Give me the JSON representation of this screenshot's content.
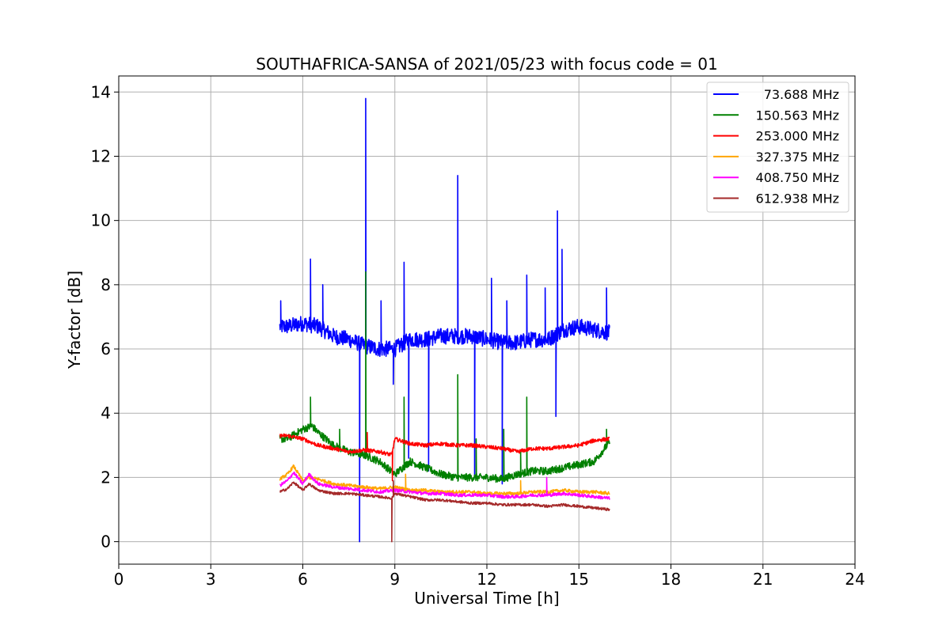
{
  "chart_data": {
    "type": "line",
    "title": "SOUTHAFRICA-SANSA of 2021/05/23 with focus code = 01",
    "xlabel": "Universal Time [h]",
    "ylabel": "Y-factor [dB]",
    "xlim": [
      0,
      24
    ],
    "ylim": [
      -0.7,
      14.5
    ],
    "xticks": [
      0,
      3,
      6,
      9,
      12,
      15,
      18,
      21,
      24
    ],
    "yticks": [
      0,
      2,
      4,
      6,
      8,
      10,
      12,
      14
    ],
    "grid": true,
    "legend_position": "top-right",
    "series": [
      {
        "name": "73.688 MHz",
        "color": "#0000ff",
        "noise": 0.25,
        "x": [
          5.25,
          5.5,
          6.0,
          6.5,
          7.0,
          7.5,
          8.0,
          8.5,
          9.0,
          9.5,
          10.0,
          10.5,
          11.0,
          11.5,
          12.0,
          12.5,
          13.0,
          13.5,
          14.0,
          14.5,
          15.0,
          15.5,
          16.0
        ],
        "y": [
          6.7,
          6.7,
          6.8,
          6.7,
          6.4,
          6.3,
          6.1,
          6.0,
          6.0,
          6.3,
          6.3,
          6.4,
          6.4,
          6.4,
          6.3,
          6.2,
          6.2,
          6.3,
          6.3,
          6.6,
          6.7,
          6.6,
          6.5
        ],
        "spikes": [
          [
            5.28,
            7.5
          ],
          [
            6.25,
            8.8
          ],
          [
            6.65,
            8.0
          ],
          [
            7.85,
            0.0
          ],
          [
            8.05,
            13.8
          ],
          [
            8.55,
            7.5
          ],
          [
            8.95,
            4.9
          ],
          [
            9.3,
            8.7
          ],
          [
            9.45,
            2.6
          ],
          [
            10.1,
            2.2
          ],
          [
            11.05,
            11.4
          ],
          [
            11.6,
            2.0
          ],
          [
            12.15,
            8.2
          ],
          [
            12.5,
            1.8
          ],
          [
            12.65,
            7.5
          ],
          [
            13.3,
            8.3
          ],
          [
            13.9,
            7.9
          ],
          [
            14.3,
            10.3
          ],
          [
            14.45,
            9.1
          ],
          [
            14.25,
            3.9
          ],
          [
            15.9,
            7.9
          ]
        ]
      },
      {
        "name": "150.563 MHz",
        "color": "#008000",
        "noise": 0.12,
        "x": [
          5.25,
          5.5,
          6.0,
          6.3,
          6.5,
          7.0,
          7.5,
          8.0,
          8.5,
          9.0,
          9.5,
          10.0,
          10.5,
          11.0,
          11.5,
          12.0,
          12.5,
          13.0,
          13.5,
          14.0,
          14.5,
          15.0,
          15.5,
          16.0
        ],
        "y": [
          3.2,
          3.2,
          3.5,
          3.6,
          3.4,
          3.0,
          2.8,
          2.7,
          2.5,
          2.1,
          2.5,
          2.3,
          2.1,
          2.0,
          2.0,
          2.0,
          1.95,
          2.1,
          2.2,
          2.2,
          2.3,
          2.4,
          2.5,
          3.1
        ],
        "spikes": [
          [
            6.25,
            4.5
          ],
          [
            7.2,
            3.5
          ],
          [
            8.05,
            8.4
          ],
          [
            9.3,
            4.5
          ],
          [
            11.05,
            5.2
          ],
          [
            11.65,
            3.2
          ],
          [
            12.55,
            3.5
          ],
          [
            13.3,
            4.5
          ],
          [
            13.1,
            2.8
          ],
          [
            15.9,
            3.5
          ]
        ]
      },
      {
        "name": "253.000 MHz",
        "color": "#ff0000",
        "noise": 0.06,
        "x": [
          5.25,
          5.5,
          6.0,
          6.5,
          7.0,
          7.5,
          8.0,
          8.5,
          8.9,
          9.0,
          9.5,
          10.0,
          10.5,
          11.0,
          11.5,
          12.0,
          12.5,
          13.0,
          13.5,
          14.0,
          14.5,
          15.0,
          15.5,
          16.0
        ],
        "y": [
          3.3,
          3.3,
          3.2,
          3.0,
          2.9,
          2.8,
          2.85,
          2.8,
          2.7,
          3.2,
          3.05,
          3.0,
          3.05,
          3.0,
          3.0,
          2.95,
          2.9,
          2.8,
          2.9,
          2.9,
          2.95,
          3.0,
          3.15,
          3.2
        ],
        "spikes": [
          [
            8.1,
            3.4
          ],
          [
            8.92,
            1.9
          ]
        ]
      },
      {
        "name": "327.375 MHz",
        "color": "#ffa500",
        "noise": 0.05,
        "x": [
          5.25,
          5.5,
          5.7,
          6.0,
          6.2,
          6.5,
          7.0,
          7.5,
          8.0,
          8.5,
          9.0,
          9.5,
          10.0,
          10.5,
          11.0,
          11.5,
          12.0,
          12.5,
          13.0,
          13.5,
          14.0,
          14.5,
          15.0,
          15.5,
          16.0
        ],
        "y": [
          1.95,
          2.1,
          2.35,
          1.9,
          2.0,
          1.95,
          1.8,
          1.75,
          1.7,
          1.65,
          1.7,
          1.6,
          1.6,
          1.55,
          1.55,
          1.55,
          1.5,
          1.5,
          1.5,
          1.55,
          1.55,
          1.6,
          1.55,
          1.55,
          1.5
        ],
        "spikes": [
          [
            9.35,
            2.1
          ],
          [
            13.1,
            1.9
          ]
        ]
      },
      {
        "name": "408.750 MHz",
        "color": "#ff00ff",
        "noise": 0.05,
        "x": [
          5.25,
          5.5,
          5.7,
          6.0,
          6.2,
          6.5,
          7.0,
          7.5,
          8.0,
          8.5,
          9.0,
          9.5,
          10.0,
          10.5,
          11.0,
          11.5,
          12.0,
          12.5,
          13.0,
          13.5,
          14.0,
          14.5,
          15.0,
          15.5,
          16.0
        ],
        "y": [
          1.75,
          1.9,
          2.15,
          1.8,
          2.1,
          1.8,
          1.7,
          1.65,
          1.6,
          1.55,
          1.6,
          1.55,
          1.5,
          1.5,
          1.45,
          1.45,
          1.45,
          1.4,
          1.4,
          1.45,
          1.45,
          1.5,
          1.45,
          1.4,
          1.35
        ],
        "spikes": [
          [
            13.95,
            2.0
          ]
        ]
      },
      {
        "name": "612.938 MHz",
        "color": "#a52a2a",
        "noise": 0.04,
        "x": [
          5.25,
          5.5,
          5.7,
          6.0,
          6.2,
          6.5,
          7.0,
          7.5,
          8.0,
          8.5,
          8.9,
          9.0,
          9.5,
          10.0,
          10.5,
          11.0,
          11.5,
          12.0,
          12.5,
          13.0,
          13.5,
          14.0,
          14.5,
          15.0,
          15.5,
          16.0
        ],
        "y": [
          1.55,
          1.65,
          1.85,
          1.6,
          1.8,
          1.6,
          1.5,
          1.5,
          1.45,
          1.4,
          1.35,
          1.5,
          1.4,
          1.3,
          1.3,
          1.25,
          1.2,
          1.2,
          1.15,
          1.15,
          1.15,
          1.1,
          1.15,
          1.1,
          1.05,
          1.0
        ],
        "spikes": [
          [
            8.9,
            0.0
          ],
          [
            8.95,
            1.9
          ]
        ]
      }
    ]
  }
}
